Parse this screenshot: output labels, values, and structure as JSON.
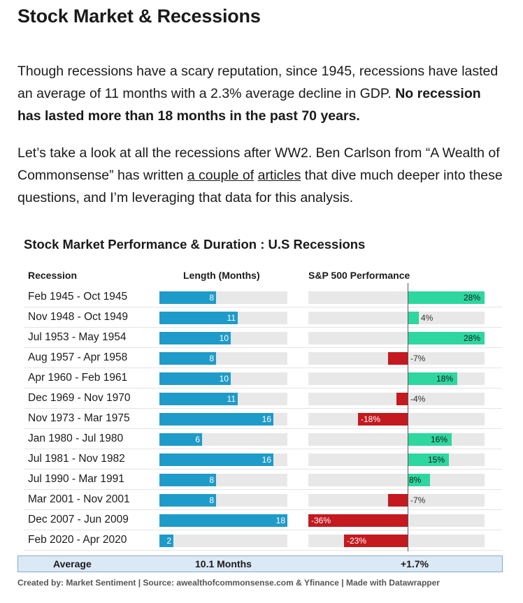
{
  "article": {
    "title": "Stock Market & Recessions",
    "p1_text": "Though recessions have a scary reputation, since 1945, recessions have lasted an average of 11 months with a 2.3% average decline in GDP. ",
    "p1_bold": "No recession has lasted more than 18 months in the past 70 years.",
    "p2_before": "Let’s take a look at all the recessions after WW2. Ben Carlson from “A Wealth of Commonsense” has written ",
    "p2_link1": "a couple of",
    "p2_link2": "articles",
    "p2_after": " that dive much deeper into these questions, and I’m leveraging that data for this analysis."
  },
  "chart_data": {
    "type": "table",
    "title": "Stock Market Performance & Duration : U.S Recessions",
    "columns": [
      "Recession",
      "Length (Months)",
      "S&P 500 Performance"
    ],
    "length_max": 18,
    "perf_range": [
      -36,
      28
    ],
    "rows": [
      {
        "recession": "Feb 1945 - Oct 1945",
        "length": 8,
        "sp500": 28,
        "sp500_label": "28%"
      },
      {
        "recession": "Nov 1948 - Oct 1949",
        "length": 11,
        "sp500": 4,
        "sp500_label": "4%"
      },
      {
        "recession": "Jul 1953 - May 1954",
        "length": 10,
        "sp500": 28,
        "sp500_label": "28%"
      },
      {
        "recession": "Aug 1957 - Apr 1958",
        "length": 8,
        "sp500": -7,
        "sp500_label": "-7%"
      },
      {
        "recession": "Apr 1960 - Feb 1961",
        "length": 10,
        "sp500": 18,
        "sp500_label": "18%"
      },
      {
        "recession": "Dec 1969 - Nov 1970",
        "length": 11,
        "sp500": -4,
        "sp500_label": "-4%"
      },
      {
        "recession": "Nov 1973 - Mar 1975",
        "length": 16,
        "sp500": -18,
        "sp500_label": "-18%"
      },
      {
        "recession": "Jan 1980 - Jul 1980",
        "length": 6,
        "sp500": 16,
        "sp500_label": "16%"
      },
      {
        "recession": "Jul 1981 - Nov 1982",
        "length": 16,
        "sp500": 15,
        "sp500_label": "15%"
      },
      {
        "recession": "Jul 1990 - Mar 1991",
        "length": 8,
        "sp500": 8,
        "sp500_label": "8%"
      },
      {
        "recession": "Mar 2001 - Nov 2001",
        "length": 8,
        "sp500": -7,
        "sp500_label": "-7%"
      },
      {
        "recession": "Dec 2007 - Jun 2009",
        "length": 18,
        "sp500": -36,
        "sp500_label": "-36%"
      },
      {
        "recession": "Feb 2020 - Apr 2020",
        "length": 2,
        "sp500": -23,
        "sp500_label": "-23%"
      }
    ],
    "average": {
      "label": "Average",
      "length": "10.1 Months",
      "sp500": "+1.7%"
    },
    "footer": "Created by: Market Sentiment | Source: awealthofcommonsense.com & Yfinance | Made with Datawrapper",
    "colors": {
      "length": "#1f9bc9",
      "positive": "#2ed7a0",
      "negative": "#c3191f",
      "track": "#e8e8e8"
    }
  }
}
